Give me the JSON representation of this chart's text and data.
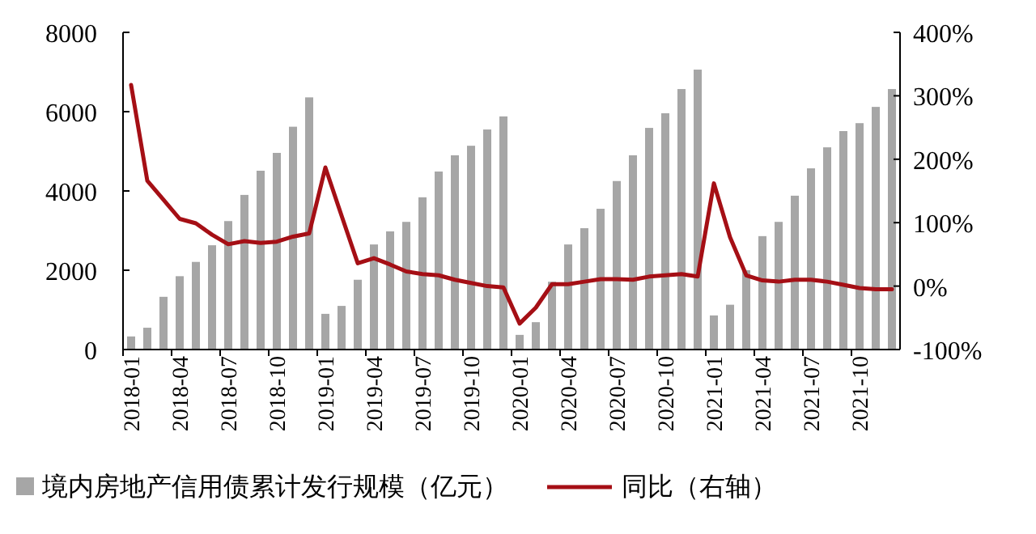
{
  "chart_data": {
    "type": "bar",
    "categories": [
      "2018-01",
      null,
      null,
      "2018-04",
      null,
      null,
      "2018-07",
      null,
      null,
      "2018-10",
      null,
      null,
      "2019-01",
      null,
      null,
      "2019-04",
      null,
      null,
      "2019-07",
      null,
      null,
      "2019-10",
      null,
      null,
      "2020-01",
      null,
      null,
      "2020-04",
      null,
      null,
      "2020-07",
      null,
      null,
      "2020-10",
      null,
      null,
      "2021-01",
      null,
      null,
      "2021-04",
      null,
      null,
      "2021-07",
      null,
      null,
      "2021-10",
      null,
      null
    ],
    "series": [
      {
        "name": "境内房地产信用债累计发行规模（亿元）",
        "color": "#a6a6a6",
        "values": [
          330,
          550,
          1330,
          1850,
          2210,
          2630,
          3240,
          3900,
          4510,
          4960,
          5620,
          6360,
          900,
          1100,
          1760,
          2650,
          2980,
          3220,
          3840,
          4490,
          4900,
          5140,
          5550,
          5880,
          370,
          690,
          1710,
          2650,
          3060,
          3550,
          4250,
          4900,
          5590,
          5960,
          6570,
          7060,
          860,
          1130,
          2000,
          2860,
          3220,
          3880,
          4570,
          5100,
          5510,
          5710,
          6120,
          6570
        ]
      },
      {
        "name": "同比（右轴）",
        "type": "line",
        "axis": "y2",
        "color": "#a50f15",
        "values": [
          317,
          166,
          136,
          106,
          99,
          81,
          66,
          71,
          68,
          70,
          78,
          83,
          187,
          111,
          36,
          44,
          34,
          23,
          19,
          17,
          10,
          5,
          0,
          -2,
          -59,
          -34,
          3,
          3,
          7,
          11,
          11,
          10,
          15,
          17,
          19,
          15,
          162,
          77,
          17,
          9,
          7,
          10,
          10,
          7,
          2,
          -3,
          -5,
          -5
        ]
      }
    ],
    "ylim": [
      0,
      8000
    ],
    "yticks": [
      0,
      2000,
      4000,
      6000,
      8000
    ],
    "y2lim": [
      -100,
      400
    ],
    "y2ticks": [
      {
        "value": -100,
        "label": "-100%"
      },
      {
        "value": 0,
        "label": "0%"
      },
      {
        "value": 100,
        "label": "100%"
      },
      {
        "value": 200,
        "label": "200%"
      },
      {
        "value": 300,
        "label": "300%"
      },
      {
        "value": 400,
        "label": "400%"
      }
    ],
    "grid": false,
    "legend": "bottom",
    "line_style": "solid",
    "marker": "none"
  }
}
